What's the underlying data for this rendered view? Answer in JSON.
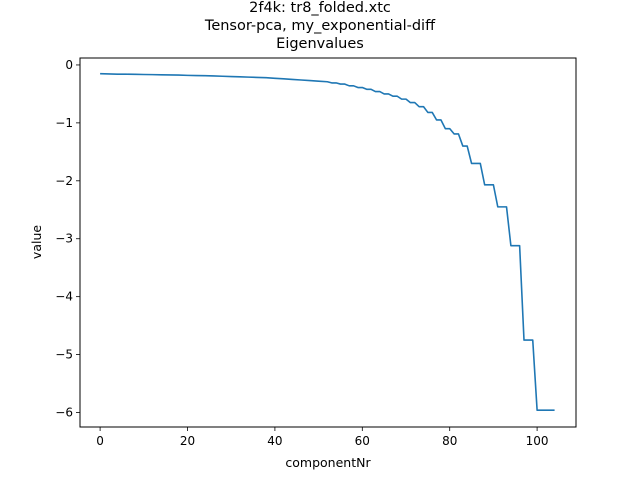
{
  "chart_data": {
    "type": "line",
    "title_lines": [
      "2f4k: tr8_folded.xtc",
      "Tensor-pca, my_exponential-diff",
      "Eigenvalues"
    ],
    "xlabel": "componentNr",
    "ylabel": "value",
    "xlim": [
      -4.6,
      108.9
    ],
    "ylim": [
      -6.25,
      0.12
    ],
    "xticks": [
      0,
      20,
      40,
      60,
      80,
      100
    ],
    "yticks": [
      0,
      -1,
      -2,
      -3,
      -4,
      -5,
      -6
    ],
    "grid": false,
    "legend": "none",
    "series": [
      {
        "color": "#1f77b4",
        "x": [
          0,
          2,
          4,
          6,
          8,
          10,
          12,
          14,
          16,
          18,
          20,
          22,
          24,
          26,
          28,
          30,
          32,
          34,
          36,
          38,
          40,
          42,
          44,
          46,
          48,
          50,
          52,
          53,
          54,
          55,
          56,
          57,
          58,
          59,
          60,
          61,
          62,
          63,
          64,
          65,
          66,
          67,
          68,
          69,
          70,
          71,
          72,
          73,
          74,
          75,
          76,
          77,
          78,
          79,
          80,
          81,
          82,
          83,
          84,
          85,
          86,
          87,
          88,
          89,
          90,
          91,
          92,
          93,
          94,
          95,
          96,
          97,
          98,
          99,
          100,
          101,
          102,
          103,
          104
        ],
        "values": [
          -0.15,
          -0.155,
          -0.16,
          -0.16,
          -0.162,
          -0.165,
          -0.167,
          -0.17,
          -0.172,
          -0.175,
          -0.18,
          -0.183,
          -0.185,
          -0.19,
          -0.195,
          -0.2,
          -0.205,
          -0.21,
          -0.215,
          -0.22,
          -0.23,
          -0.24,
          -0.25,
          -0.26,
          -0.27,
          -0.28,
          -0.29,
          -0.31,
          -0.31,
          -0.33,
          -0.33,
          -0.36,
          -0.36,
          -0.39,
          -0.39,
          -0.42,
          -0.42,
          -0.46,
          -0.46,
          -0.5,
          -0.5,
          -0.54,
          -0.54,
          -0.59,
          -0.59,
          -0.65,
          -0.65,
          -0.72,
          -0.72,
          -0.82,
          -0.82,
          -0.95,
          -0.95,
          -1.1,
          -1.1,
          -1.19,
          -1.19,
          -1.4,
          -1.4,
          -1.7,
          -1.7,
          -1.7,
          -2.07,
          -2.07,
          -2.07,
          -2.45,
          -2.45,
          -2.45,
          -3.12,
          -3.12,
          -3.12,
          -4.75,
          -4.75,
          -4.75,
          -5.96,
          -5.96,
          -5.96,
          -5.96,
          -5.96
        ]
      }
    ]
  }
}
